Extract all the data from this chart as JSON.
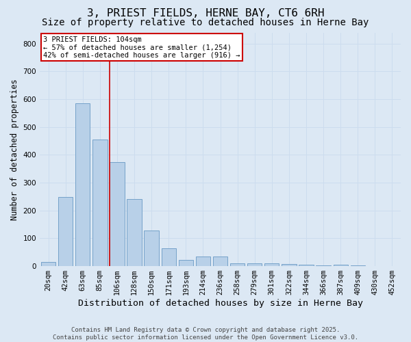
{
  "title": "3, PRIEST FIELDS, HERNE BAY, CT6 6RH",
  "subtitle": "Size of property relative to detached houses in Herne Bay",
  "xlabel": "Distribution of detached houses by size in Herne Bay",
  "ylabel": "Number of detached properties",
  "categories": [
    "20sqm",
    "42sqm",
    "63sqm",
    "85sqm",
    "106sqm",
    "128sqm",
    "150sqm",
    "171sqm",
    "193sqm",
    "214sqm",
    "236sqm",
    "258sqm",
    "279sqm",
    "301sqm",
    "322sqm",
    "344sqm",
    "366sqm",
    "387sqm",
    "409sqm",
    "430sqm",
    "452sqm"
  ],
  "values": [
    15,
    248,
    585,
    455,
    375,
    240,
    128,
    65,
    22,
    35,
    35,
    10,
    10,
    10,
    8,
    5,
    2,
    5,
    2,
    0,
    0
  ],
  "bar_color": "#b8d0e8",
  "bar_edge_color": "#6899c4",
  "grid_color": "#ccdcee",
  "background_color": "#dce8f4",
  "annotation_box_bg": "#ffffff",
  "annotation_box_edge": "#cc0000",
  "vline_color": "#cc0000",
  "vline_x_index": 4,
  "annotation_title": "3 PRIEST FIELDS: 104sqm",
  "annotation_line1": "← 57% of detached houses are smaller (1,254)",
  "annotation_line2": "42% of semi-detached houses are larger (916) →",
  "ylim": [
    0,
    840
  ],
  "yticks": [
    0,
    100,
    200,
    300,
    400,
    500,
    600,
    700,
    800
  ],
  "footnote1": "Contains HM Land Registry data © Crown copyright and database right 2025.",
  "footnote2": "Contains public sector information licensed under the Open Government Licence v3.0.",
  "title_fontsize": 11.5,
  "subtitle_fontsize": 10,
  "xlabel_fontsize": 9.5,
  "ylabel_fontsize": 8.5,
  "tick_fontsize": 7.5,
  "annotation_fontsize": 7.5,
  "footnote_fontsize": 6.5
}
